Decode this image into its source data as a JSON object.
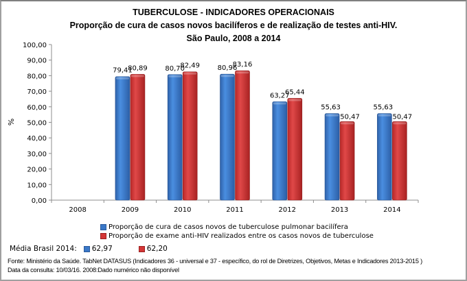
{
  "header": {
    "title": "TUBERCULOSE - INDICADORES OPERACIONAIS",
    "subtitle": "Proporção de cura de casos novos bacilíferos e de realização de testes anti-HIV.",
    "location_period": "São Paulo, 2008 a 2014"
  },
  "chart_data": {
    "type": "bar",
    "title": "TUBERCULOSE - INDICADORES OPERACIONAIS",
    "subtitle": "Proporção de cura de casos novos bacilíferos e de realização de testes anti-HIV. São Paulo, 2008 a 2014",
    "xlabel": "",
    "ylabel": "%",
    "ylim": [
      0,
      100
    ],
    "yticks": [
      "0,00",
      "10,00",
      "20,00",
      "30,00",
      "40,00",
      "50,00",
      "60,00",
      "70,00",
      "80,00",
      "90,00",
      "100,00"
    ],
    "grid": false,
    "legend_position": "bottom",
    "categories": [
      "2008",
      "2009",
      "2010",
      "2011",
      "2012",
      "2013",
      "2014"
    ],
    "series": [
      {
        "name": "Proporção de cura de casos novos de tuberculose pulmonar bacilífera",
        "color": "#3a78c8",
        "values": [
          null,
          79.41,
          80.7,
          80.96,
          63.27,
          55.63,
          55.63
        ],
        "labels": [
          "",
          "79,41",
          "80,70",
          "80,96",
          "63,27",
          "55,63",
          "55,63"
        ]
      },
      {
        "name": "Proporção de exame anti-HIV realizados entre os casos novos de tuberculose",
        "color": "#d43636",
        "values": [
          null,
          80.89,
          82.49,
          83.16,
          65.44,
          50.47,
          50.47
        ],
        "labels": [
          "",
          "80,89",
          "82,49",
          "83,16",
          "65,44",
          "50,47",
          "50,47"
        ]
      }
    ]
  },
  "media_brasil": {
    "label": "Média Brasil 2014:",
    "values": [
      "62,97",
      "62,20"
    ]
  },
  "footer": {
    "source": "Fonte: Ministério da Saúde. TabNet DATASUS (Indicadores 36 - universal e 37 - específico, do rol de Diretrizes, Objetivos, Metas e Indicadores 2013-2015 )",
    "note": "Data da consulta: 10/03/16. 2008:Dado numérico não disponível"
  }
}
